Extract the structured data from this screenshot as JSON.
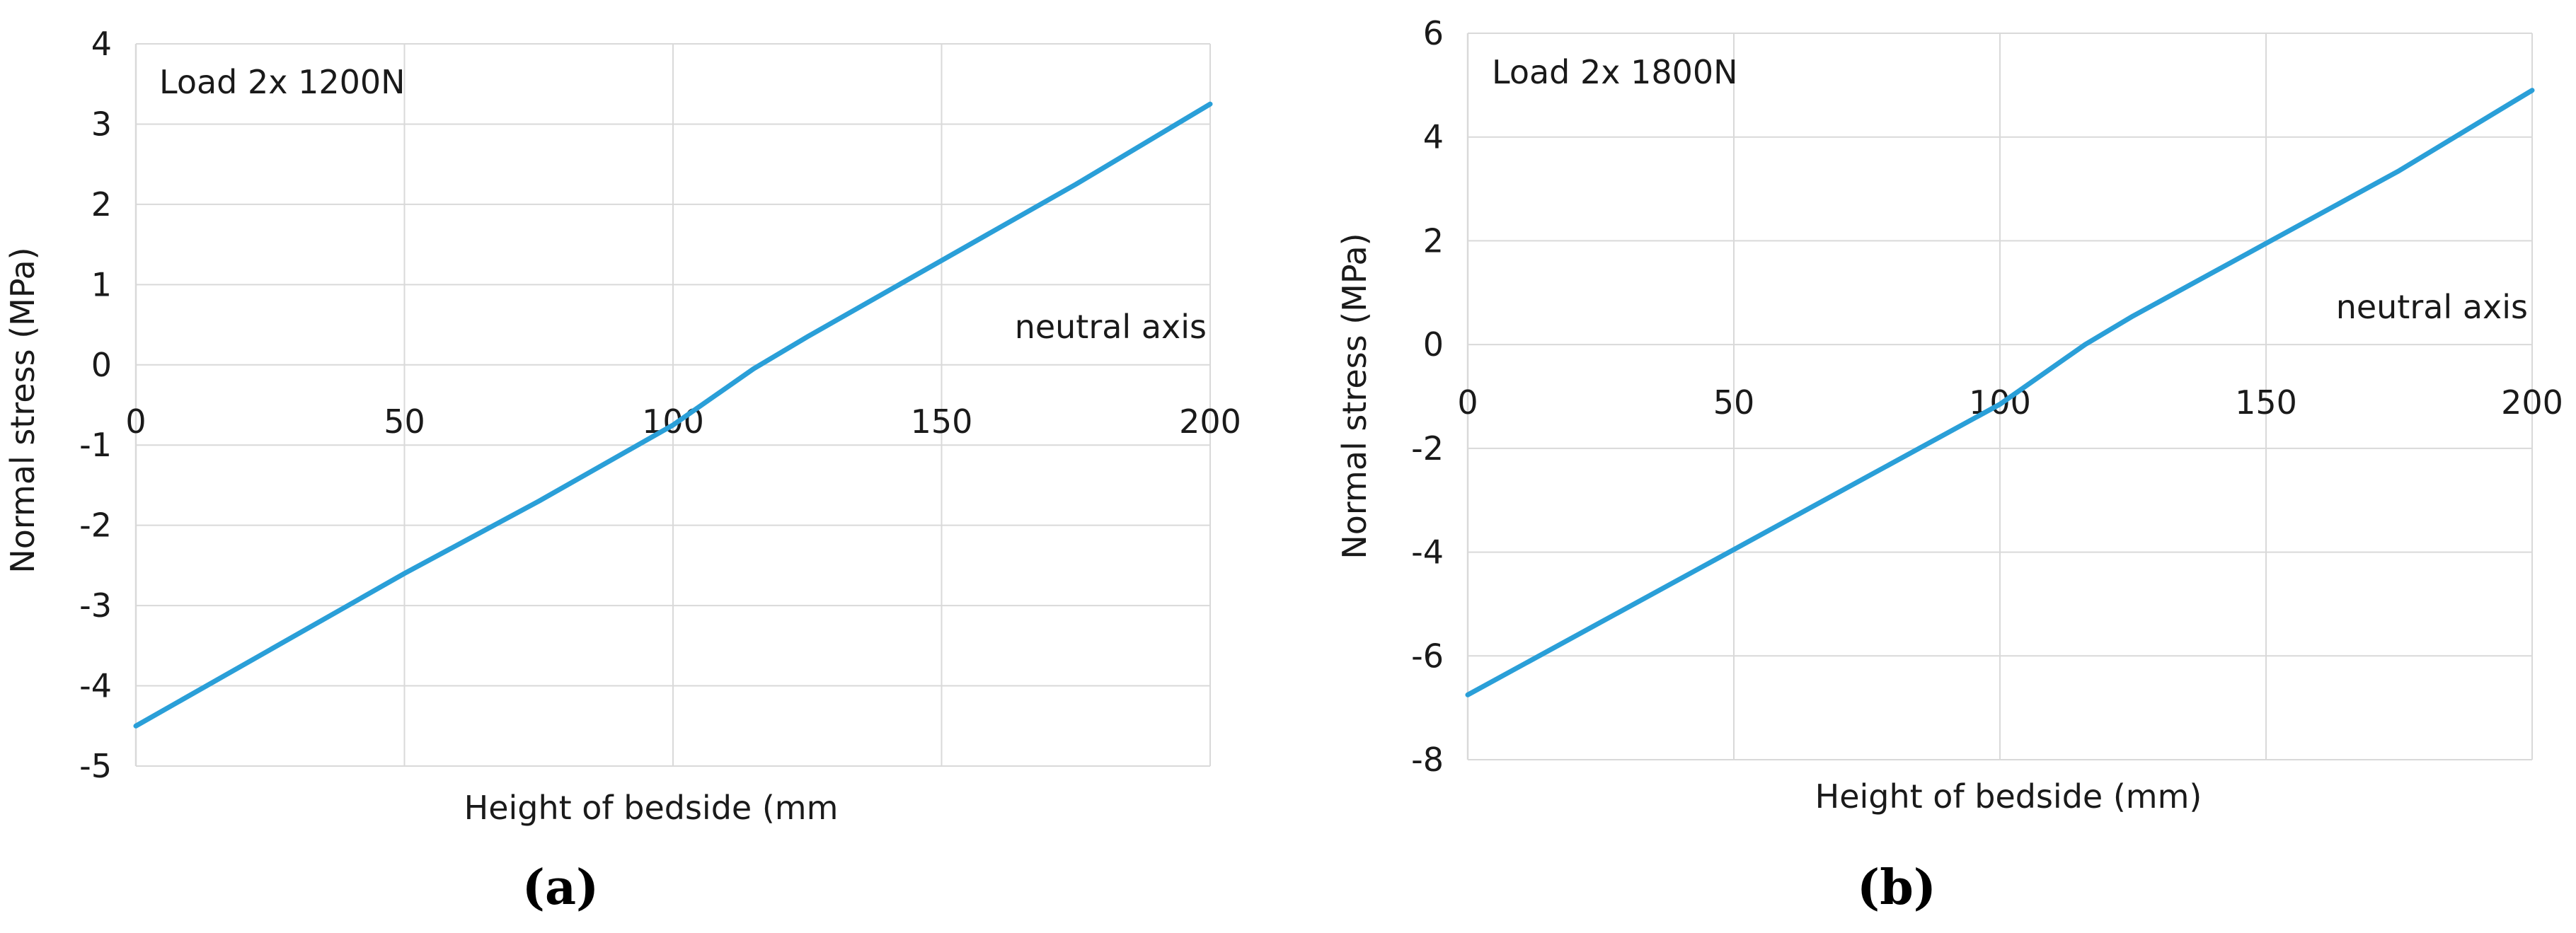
{
  "chart_data": [
    {
      "type": "line",
      "caption": "(a)",
      "annotation": "Load 2x 1200N",
      "neutral_axis_label": "neutral axis",
      "xlabel": "Height of bedside (mm",
      "ylabel": "Normal stress (MPa)",
      "xlim": [
        0,
        200
      ],
      "ylim": [
        -5,
        4
      ],
      "xticks": [
        0,
        50,
        100,
        150,
        200
      ],
      "yticks": [
        -5,
        -4,
        -3,
        -2,
        -1,
        0,
        1,
        2,
        3,
        4
      ],
      "grid": true,
      "color": "#2a9fd8",
      "series": [
        {
          "x": [
            0,
            25,
            50,
            75,
            100,
            115,
            125,
            150,
            175,
            200
          ],
          "y": [
            -4.5,
            -3.55,
            -2.6,
            -1.7,
            -0.75,
            -0.05,
            0.35,
            1.3,
            2.25,
            3.25
          ]
        }
      ]
    },
    {
      "type": "line",
      "caption": "(b)",
      "annotation": "Load 2x 1800N",
      "neutral_axis_label": "neutral axis",
      "xlabel": "Height of bedside (mm)",
      "ylabel": "Normal stress (MPa)",
      "xlim": [
        0,
        200
      ],
      "ylim": [
        -8,
        6
      ],
      "xticks": [
        0,
        50,
        100,
        150,
        200
      ],
      "yticks": [
        -8,
        -6,
        -4,
        -2,
        0,
        2,
        4,
        6
      ],
      "grid": true,
      "color": "#2a9fd8",
      "series": [
        {
          "x": [
            0,
            25,
            50,
            75,
            100,
            116,
            125,
            150,
            175,
            200
          ],
          "y": [
            -6.75,
            -5.35,
            -3.95,
            -2.55,
            -1.15,
            0.0,
            0.55,
            1.95,
            3.35,
            4.9
          ]
        }
      ]
    }
  ]
}
